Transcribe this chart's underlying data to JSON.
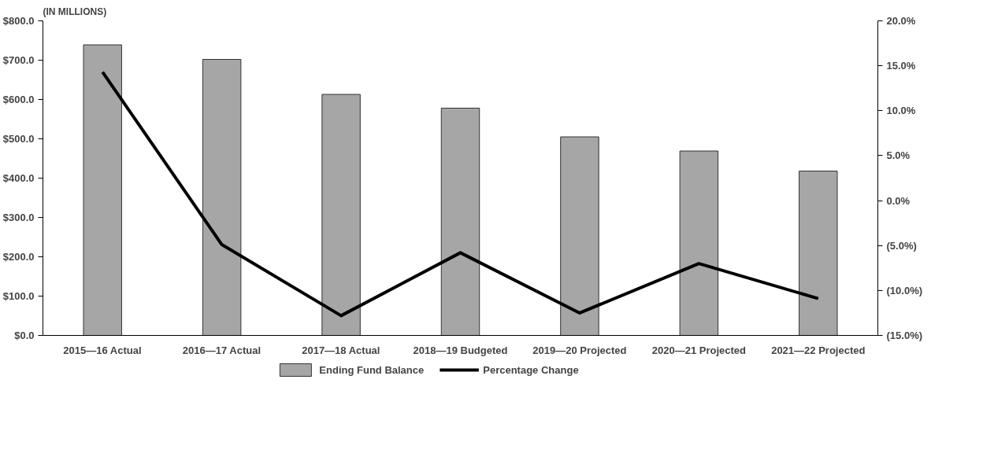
{
  "chart_data": {
    "type": "bar",
    "ylabel": "(IN MILLIONS)",
    "categories": [
      "2015—16 Actual",
      "2016—17 Actual",
      "2017—18 Actual",
      "2018—19 Budgeted",
      "2019—20 Projected",
      "2020—21 Projected",
      "2021—22 Projected"
    ],
    "series": [
      {
        "name": "Ending Fund Balance",
        "color": "#a6a6a6",
        "values": [
          739,
          702,
          613,
          578,
          505,
          469,
          418
        ]
      },
      {
        "name": "Percentage Change",
        "type": "line",
        "axis": "y2",
        "color": "#000000",
        "values": [
          14.3,
          -4.9,
          -12.8,
          -5.8,
          -12.5,
          -7.0,
          -10.9
        ]
      }
    ],
    "ylim": [
      0,
      800
    ],
    "yticks": [
      {
        "value": 0,
        "label": "$0.0"
      },
      {
        "value": 100,
        "label": "$100.0"
      },
      {
        "value": 200,
        "label": "$200.0"
      },
      {
        "value": 300,
        "label": "$300.0"
      },
      {
        "value": 400,
        "label": "$400.0"
      },
      {
        "value": 500,
        "label": "$500.0"
      },
      {
        "value": 600,
        "label": "$600.0"
      },
      {
        "value": 700,
        "label": "$700.0"
      },
      {
        "value": 800,
        "label": "$800.0"
      }
    ],
    "y2lim": [
      -15,
      20
    ],
    "y2ticks": [
      {
        "value": -15,
        "label": "(15.0%)"
      },
      {
        "value": -10,
        "label": "(10.0%)"
      },
      {
        "value": -5,
        "label": "(5.0%)"
      },
      {
        "value": 0,
        "label": "0.0%"
      },
      {
        "value": 5,
        "label": "5.0%"
      },
      {
        "value": 10,
        "label": "10.0%"
      },
      {
        "value": 15,
        "label": "15.0%"
      },
      {
        "value": 20,
        "label": "20.0%"
      }
    ],
    "legend": "bottom",
    "grid": false
  }
}
